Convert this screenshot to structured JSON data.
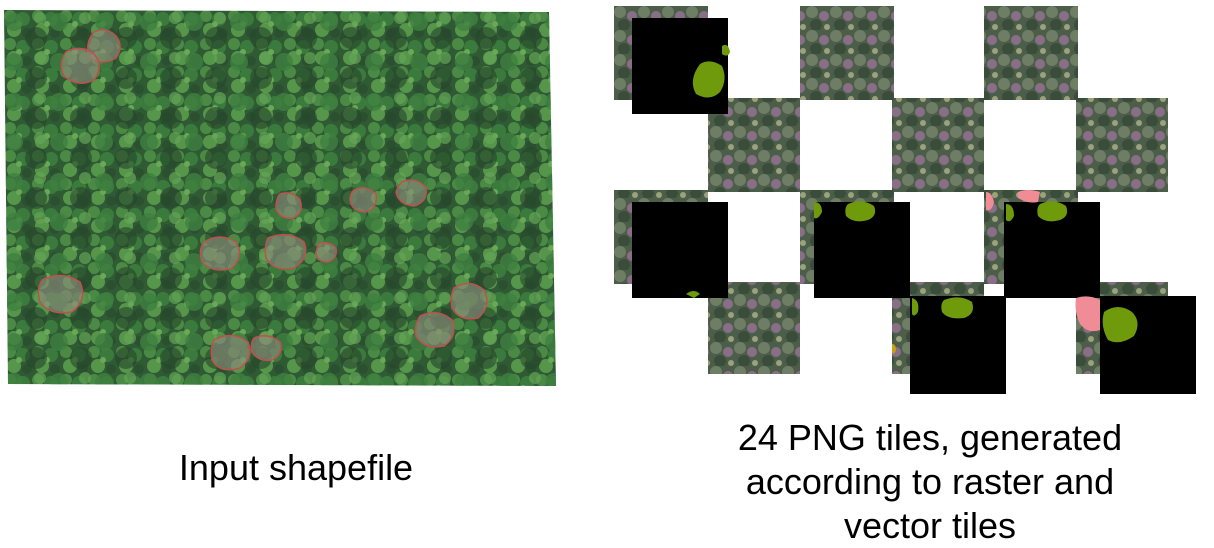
{
  "left_panel": {
    "caption": "Input shapefile",
    "tree_crown_outline_color": "#c0504d"
  },
  "right_panel": {
    "caption_lines": [
      "24 PNG tiles, generated",
      "according to raster and",
      "vector tiles"
    ],
    "mask_background": "#000000",
    "label_colors": {
      "class_a": "#6e9a0c",
      "class_b": "#f08c96",
      "class_c": "#c8a010"
    }
  },
  "colors": {
    "forest_dark": "#2a4a2a",
    "forest_mid": "#3c6e3a",
    "forest_light": "#5f9c4c",
    "tile_bg": "#4a5a48",
    "tile_pink": "#9a6a8a"
  }
}
